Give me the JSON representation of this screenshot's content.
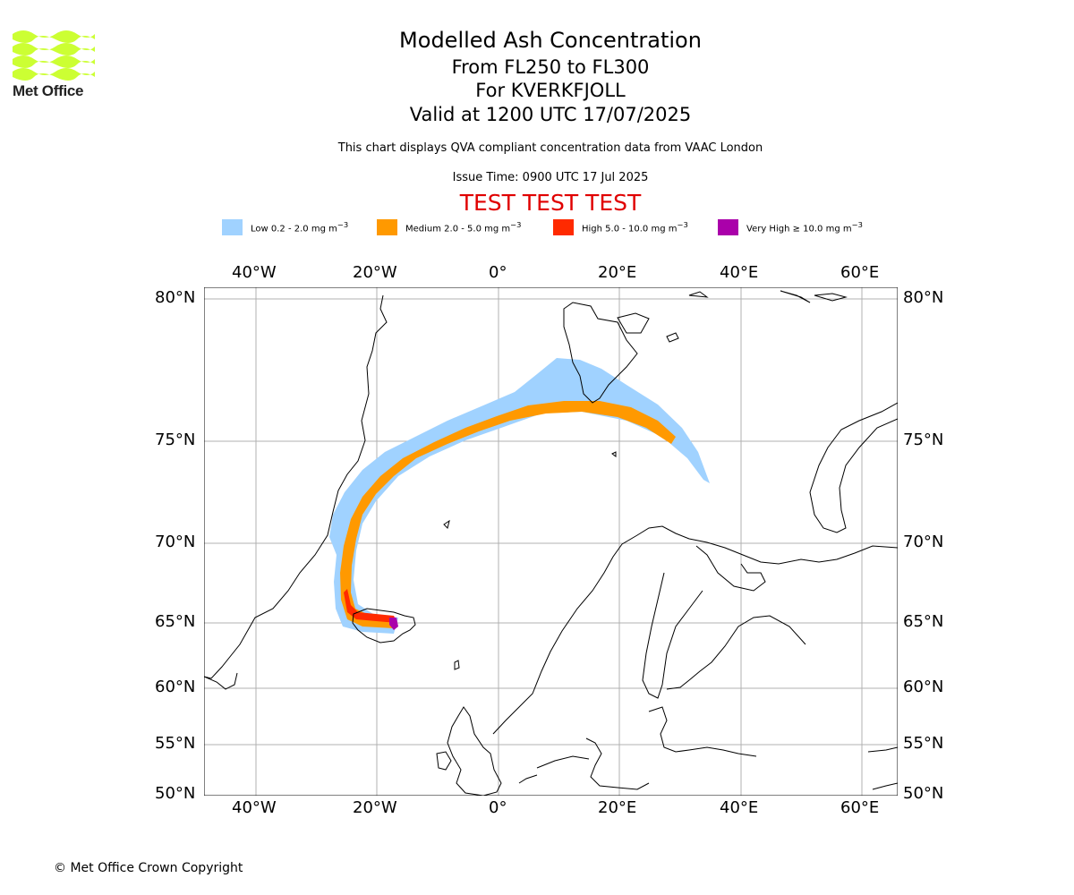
{
  "header": {
    "title": "Modelled Ash Concentration",
    "level_range": "From FL250 to FL300",
    "volcano": "For KVERKFJOLL",
    "valid_time": "Valid at 1200 UTC 17/07/2025",
    "description": "This chart displays QVA compliant concentration data from VAAC London",
    "issue_time": "Issue Time: 0900 UTC 17 Jul 2025",
    "test_banner": "TEST TEST TEST"
  },
  "logo": {
    "text": "Met Office",
    "color": "#ccff33"
  },
  "legend": [
    {
      "label": "Low 0.2 - 2.0 mg m",
      "unit_exp": "−3",
      "color": "#a0d2ff"
    },
    {
      "label": "Medium 2.0 - 5.0 mg m",
      "unit_exp": "−3",
      "color": "#ff9900"
    },
    {
      "label": "High 5.0 - 10.0 mg m",
      "unit_exp": "−3",
      "color": "#ff2a00"
    },
    {
      "label": "Very High  ≥  10.0 mg m",
      "unit_exp": "−3",
      "color": "#aa00aa"
    }
  ],
  "axes": {
    "lon_ticks_top": [
      "40°W",
      "20°W",
      "0°",
      "20°E",
      "40°E",
      "60°E"
    ],
    "lon_ticks_bottom": [
      "40°W",
      "20°W",
      "0°",
      "20°E",
      "40°E",
      "60°E"
    ],
    "lat_ticks_left": [
      "80°N",
      "75°N",
      "70°N",
      "65°N",
      "60°N",
      "55°N",
      "50°N"
    ],
    "lat_ticks_right": [
      "80°N",
      "75°N",
      "70°N",
      "65°N",
      "60°N",
      "55°N",
      "50°N"
    ],
    "gridlines": true
  },
  "footer": {
    "copyright": "© Met Office Crown Copyright"
  }
}
